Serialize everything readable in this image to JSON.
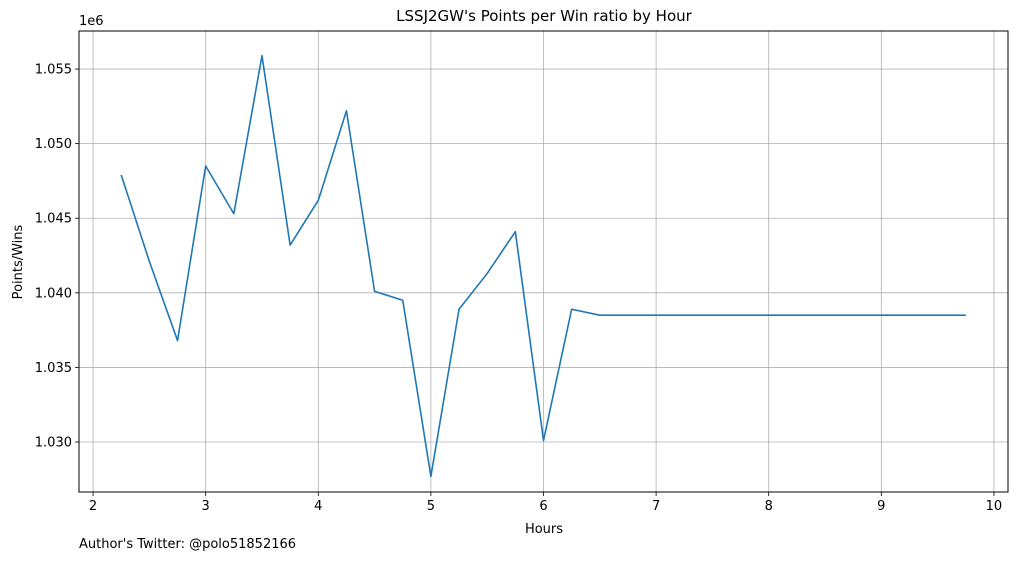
{
  "chart_data": {
    "type": "line",
    "title": "LSSJ2GW's Points per Win ratio by Hour",
    "xlabel": "Hours",
    "ylabel": "Points/Wins",
    "y_offset_label": "1e6",
    "xlim": [
      1.875,
      10.125
    ],
    "ylim": [
      1.02665,
      1.05755
    ],
    "xticks": [
      2,
      3,
      4,
      5,
      6,
      7,
      8,
      9,
      10
    ],
    "xtick_labels": [
      "2",
      "3",
      "4",
      "5",
      "6",
      "7",
      "8",
      "9",
      "10"
    ],
    "yticks": [
      1.03,
      1.035,
      1.04,
      1.045,
      1.05,
      1.055
    ],
    "ytick_labels": [
      "1.030",
      "1.035",
      "1.040",
      "1.045",
      "1.050",
      "1.055"
    ],
    "grid": true,
    "line_color": "#1f77b4",
    "series": [
      {
        "x": [
          2.25,
          2.5,
          2.75,
          3.0,
          3.25,
          3.5,
          3.75,
          4.0,
          4.25,
          4.5,
          4.75,
          5.0,
          5.25,
          5.5,
          5.75,
          6.0,
          6.25,
          6.5,
          6.75,
          7.0,
          7.25,
          7.5,
          7.75,
          8.0,
          8.25,
          8.5,
          8.75,
          9.0,
          9.25,
          9.5,
          9.75
        ],
        "y": [
          1.0479,
          1.0421,
          1.0368,
          1.0485,
          1.0453,
          1.0559,
          1.0432,
          1.0462,
          1.0522,
          1.0401,
          1.0395,
          1.0277,
          1.0389,
          1.0413,
          1.0441,
          1.0301,
          1.0389,
          1.0385,
          1.0385,
          1.0385,
          1.0385,
          1.0385,
          1.0385,
          1.0385,
          1.0385,
          1.0385,
          1.0385,
          1.0385,
          1.0385,
          1.0385,
          1.0385
        ]
      }
    ]
  },
  "footer": {
    "author_text": "Author's Twitter: @polo51852166"
  }
}
